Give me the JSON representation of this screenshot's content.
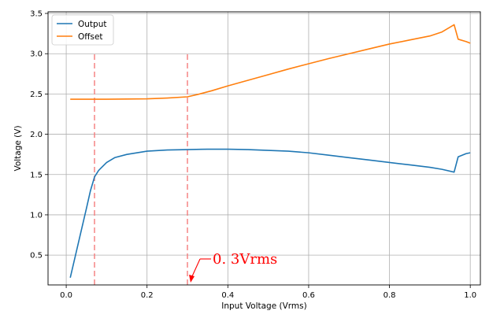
{
  "chart_data": {
    "type": "line",
    "xlabel": "Input Voltage (Vrms)",
    "ylabel": "Voltage (V)",
    "xlim": [
      -0.045,
      1.025
    ],
    "ylim": [
      0.13,
      3.52
    ],
    "xticks": [
      0.0,
      0.2,
      0.4,
      0.6,
      0.8,
      1.0
    ],
    "xtick_labels": [
      "0.0",
      "0.2",
      "0.4",
      "0.6",
      "0.8",
      "1.0"
    ],
    "yticks": [
      0.5,
      1.0,
      1.5,
      2.0,
      2.5,
      3.0,
      3.5
    ],
    "ytick_labels": [
      "0.5",
      "1.0",
      "1.5",
      "2.0",
      "2.5",
      "3.0",
      "3.5"
    ],
    "grid": true,
    "legend_position": "top-left",
    "series": [
      {
        "name": "Output",
        "color": "#1f77b4",
        "x": [
          0.01,
          0.03,
          0.05,
          0.06,
          0.07,
          0.08,
          0.1,
          0.12,
          0.15,
          0.2,
          0.25,
          0.3,
          0.35,
          0.4,
          0.45,
          0.5,
          0.55,
          0.6,
          0.65,
          0.7,
          0.75,
          0.8,
          0.85,
          0.9,
          0.93,
          0.96,
          0.97,
          0.99,
          1.0
        ],
        "values": [
          0.22,
          0.65,
          1.08,
          1.3,
          1.47,
          1.55,
          1.65,
          1.71,
          1.75,
          1.79,
          1.805,
          1.81,
          1.815,
          1.815,
          1.81,
          1.8,
          1.79,
          1.77,
          1.74,
          1.71,
          1.68,
          1.65,
          1.62,
          1.59,
          1.565,
          1.53,
          1.72,
          1.76,
          1.77
        ]
      },
      {
        "name": "Offset",
        "color": "#ff7f0e",
        "x": [
          0.01,
          0.1,
          0.2,
          0.25,
          0.3,
          0.33,
          0.36,
          0.4,
          0.45,
          0.5,
          0.55,
          0.6,
          0.65,
          0.7,
          0.75,
          0.8,
          0.85,
          0.9,
          0.93,
          0.96,
          0.97,
          0.99,
          1.0
        ],
        "values": [
          2.435,
          2.435,
          2.44,
          2.45,
          2.465,
          2.5,
          2.54,
          2.6,
          2.67,
          2.74,
          2.81,
          2.875,
          2.94,
          3.0,
          3.06,
          3.12,
          3.17,
          3.22,
          3.27,
          3.36,
          3.18,
          3.15,
          3.13
        ]
      }
    ],
    "reference_lines": [
      {
        "type": "vertical",
        "x": 0.07,
        "y_from": 0.13,
        "y_to": 3.0,
        "style": "dashed",
        "color": "#f47c7c"
      },
      {
        "type": "vertical",
        "x": 0.3,
        "y_from": 0.13,
        "y_to": 3.0,
        "style": "dashed",
        "color": "#f47c7c"
      }
    ],
    "annotations": [
      {
        "text": "0. 3Vrms",
        "x": 0.3,
        "y": 0.13,
        "color": "#ff0000"
      }
    ]
  }
}
